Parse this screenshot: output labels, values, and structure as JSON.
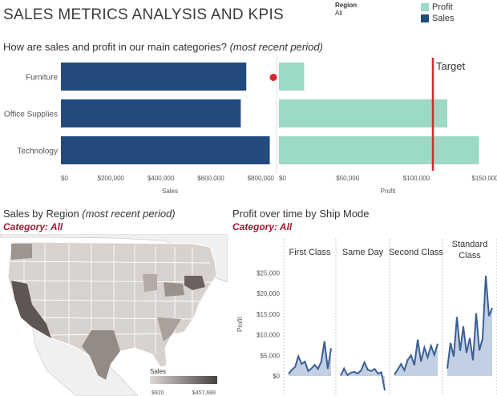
{
  "dashboard": {
    "title": "SALES METRICS ANALYSIS AND KPIS",
    "region_filter": {
      "label": "Region",
      "value": "All"
    },
    "legend": [
      {
        "name": "Profit",
        "color": "#9cd9c6"
      },
      {
        "name": "Sales",
        "color": "#234a7c"
      }
    ]
  },
  "top_section": {
    "heading": "How are sales and profit in our main categories?",
    "heading_note": "(most recent period)"
  },
  "region_section": {
    "heading": "Sales by Region",
    "heading_note": "(most recent period)",
    "category": "Category: All",
    "map_legend": {
      "title": "Sales",
      "min_label": "$920",
      "max_label": "$457,688"
    }
  },
  "shipmode_section": {
    "heading": "Profit over time by Ship Mode",
    "category": "Category: All",
    "panels": [
      "First Class",
      "Same Day",
      "Second Class",
      "Standard Class"
    ]
  },
  "chart_data": [
    {
      "type": "bar",
      "categories": [
        "Furniture",
        "Office Supplies",
        "Technology"
      ],
      "series": [
        {
          "name": "Sales",
          "values": [
            742000,
            720000,
            836000
          ]
        }
      ],
      "xlabel": "Sales",
      "xlim": [
        0,
        860000
      ],
      "ticks": [
        "$0",
        "$200,000",
        "$400,000",
        "$600,000",
        "$800,000"
      ],
      "color": "#234a7c"
    },
    {
      "type": "bar",
      "categories": [
        "Furniture",
        "Office Supplies",
        "Technology"
      ],
      "series": [
        {
          "name": "Profit",
          "values": [
            18400,
            122500,
            145500
          ]
        }
      ],
      "xlabel": "Profit",
      "xlim": [
        0,
        154000
      ],
      "ticks": [
        "$0",
        "$50,000",
        "$100,000",
        "$150,000"
      ],
      "reference_line": {
        "label": "Target",
        "value": 112000,
        "color": "#d6292b"
      },
      "alert_marker": {
        "category": "Furniture",
        "color": "#d6292b"
      },
      "color": "#9cd9c6"
    },
    {
      "type": "area",
      "ylabel": "Profit",
      "ylim": [
        0,
        27000
      ],
      "ticks": [
        "$0",
        "$5,000",
        "$10,000",
        "$15,000",
        "$20,000",
        "$25,000"
      ],
      "color": "#3a5f96",
      "fill": "#c3cfe2",
      "series": [
        {
          "name": "First Class",
          "values": [
            500,
            1500,
            2200,
            4800,
            2900,
            3500,
            1200,
            1800,
            2700,
            1700,
            3500,
            8400,
            1700,
            6700
          ]
        },
        {
          "name": "Same Day",
          "values": [
            100,
            1800,
            200,
            800,
            1000,
            600,
            1300,
            3300,
            1500,
            1200,
            1700,
            600,
            900,
            -3500
          ]
        },
        {
          "name": "Second Class",
          "values": [
            300,
            1600,
            2900,
            1400,
            3900,
            5000,
            2600,
            8800,
            3500,
            6900,
            4500,
            7300,
            5100,
            7800
          ]
        },
        {
          "name": "Standard Class",
          "values": [
            1800,
            8000,
            4700,
            14300,
            6100,
            12000,
            5600,
            9200,
            3800,
            15200,
            6200,
            9100,
            24300,
            14500,
            16500
          ]
        }
      ]
    }
  ]
}
